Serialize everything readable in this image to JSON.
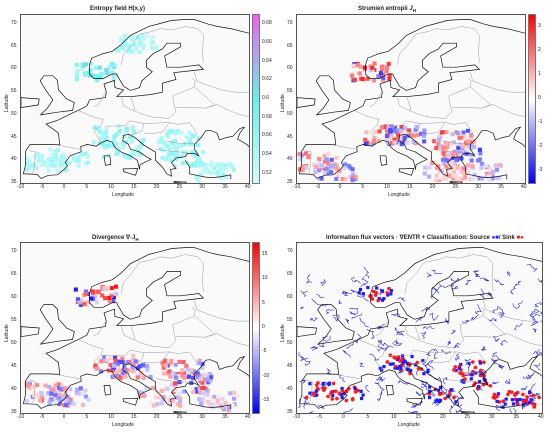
{
  "chart_data": [
    {
      "type": "heatmap",
      "title": "Entropy field H(x,y)",
      "xlabel": "Longitude",
      "ylabel": "Latitude",
      "xlim": [
        -10,
        40
      ],
      "ylim": [
        35,
        72
      ],
      "colorbar": {
        "ticks": [
          "0.68",
          "0.66",
          "0.64",
          "0.62",
          "0.6",
          "0.58",
          "0.56",
          "0.54",
          "0.52"
        ],
        "range": [
          0.51,
          0.69
        ],
        "colors": [
          "#d3fbfb",
          "#66f0f0",
          "#f060f0"
        ]
      },
      "hotspots": [
        {
          "lon": -5,
          "lat": 40,
          "intensity": 0.55
        },
        {
          "lon": 0,
          "lat": 41,
          "intensity": 0.55
        },
        {
          "lon": 12,
          "lat": 43,
          "intensity": 0.56
        },
        {
          "lon": 25,
          "lat": 41,
          "intensity": 0.56
        },
        {
          "lon": 32,
          "lat": 38,
          "intensity": 0.55
        },
        {
          "lon": 10,
          "lat": 46,
          "intensity": 0.57
        },
        {
          "lon": 6,
          "lat": 60,
          "intensity": 0.6
        },
        {
          "lon": 24,
          "lat": 45,
          "intensity": 0.56
        },
        {
          "lon": 15,
          "lat": 66,
          "intensity": 0.55
        }
      ]
    },
    {
      "type": "heatmap",
      "title": "Strumień entropii",
      "title_sub": "J",
      "title_subscript": "H",
      "xlabel": "Longitude",
      "ylabel": "Latitude",
      "xlim": [
        -10,
        40
      ],
      "ylim": [
        35,
        72
      ],
      "colorbar": {
        "ticks": [
          "3",
          "2",
          "1",
          "0",
          "-1",
          "-2",
          "-3"
        ],
        "range": [
          -3.5,
          3.5
        ],
        "colors": [
          "#0000ff",
          "#ffffff",
          "#ff0000"
        ]
      },
      "hotspots": [
        {
          "lon": -6,
          "lat": 40,
          "intensity": 2.0
        },
        {
          "lon": -2,
          "lat": 38,
          "intensity": -2.0
        },
        {
          "lon": 9,
          "lat": 46,
          "intensity": 2.5
        },
        {
          "lon": 13,
          "lat": 46,
          "intensity": -2.5
        },
        {
          "lon": 24,
          "lat": 45,
          "intensity": 2.5
        },
        {
          "lon": 26,
          "lat": 42,
          "intensity": -2.5
        },
        {
          "lon": 6,
          "lat": 60,
          "intensity": 3.0
        },
        {
          "lon": 30,
          "lat": 38,
          "intensity": -1.5
        },
        {
          "lon": 22,
          "lat": 38,
          "intensity": 1.5
        }
      ]
    },
    {
      "type": "heatmap",
      "title": "Divergence ∇·J",
      "title_sub": "",
      "title_subscript": "H",
      "xlabel": "Longitude",
      "ylabel": "Latitude",
      "xlim": [
        -10,
        40
      ],
      "ylim": [
        35,
        72
      ],
      "colorbar": {
        "ticks": [
          "15",
          "10",
          "5",
          "0",
          "-5",
          "-10",
          "-15"
        ],
        "range": [
          -17.5,
          17.5
        ],
        "colors": [
          "#0000ff",
          "#ffffff",
          "#ff0000"
        ]
      },
      "hotspots": [
        {
          "lon": -5,
          "lat": 40,
          "intensity": 10
        },
        {
          "lon": 0,
          "lat": 39,
          "intensity": -10
        },
        {
          "lon": 10,
          "lat": 46,
          "intensity": 12
        },
        {
          "lon": 14,
          "lat": 45,
          "intensity": -12
        },
        {
          "lon": 25,
          "lat": 45,
          "intensity": 12
        },
        {
          "lon": 27,
          "lat": 42,
          "intensity": -12
        },
        {
          "lon": 6,
          "lat": 61,
          "intensity": 15
        },
        {
          "lon": 33,
          "lat": 38,
          "intensity": -6
        },
        {
          "lon": 20,
          "lat": 39,
          "intensity": 6
        }
      ]
    },
    {
      "type": "scatter",
      "title": "Information flux vectors · ∇ENTR + Classification: Source",
      "legend_source": "/ Sink",
      "xlabel": "Longitude",
      "ylabel": "Latitude",
      "xlim": [
        -10,
        40
      ],
      "ylim": [
        35,
        72
      ],
      "colors": {
        "vectors": "#2a2ad0",
        "source": "#1a1aff",
        "sink": "#ff1a1a"
      },
      "clusters": [
        {
          "lon": -5,
          "lat": 40
        },
        {
          "lon": 0,
          "lat": 39
        },
        {
          "lon": 10,
          "lat": 46
        },
        {
          "lon": 14,
          "lat": 45
        },
        {
          "lon": 25,
          "lat": 45
        },
        {
          "lon": 27,
          "lat": 42
        },
        {
          "lon": 6,
          "lat": 61
        },
        {
          "lon": 33,
          "lat": 38
        },
        {
          "lon": 20,
          "lat": 39
        },
        {
          "lon": 36,
          "lat": 38
        }
      ]
    }
  ],
  "axes": {
    "xticks": [
      "-10",
      "-5",
      "0",
      "5",
      "10",
      "15",
      "20",
      "25",
      "30",
      "35",
      "40"
    ],
    "yticks": [
      "70",
      "65",
      "60",
      "55",
      "50",
      "45",
      "40",
      "35"
    ]
  }
}
